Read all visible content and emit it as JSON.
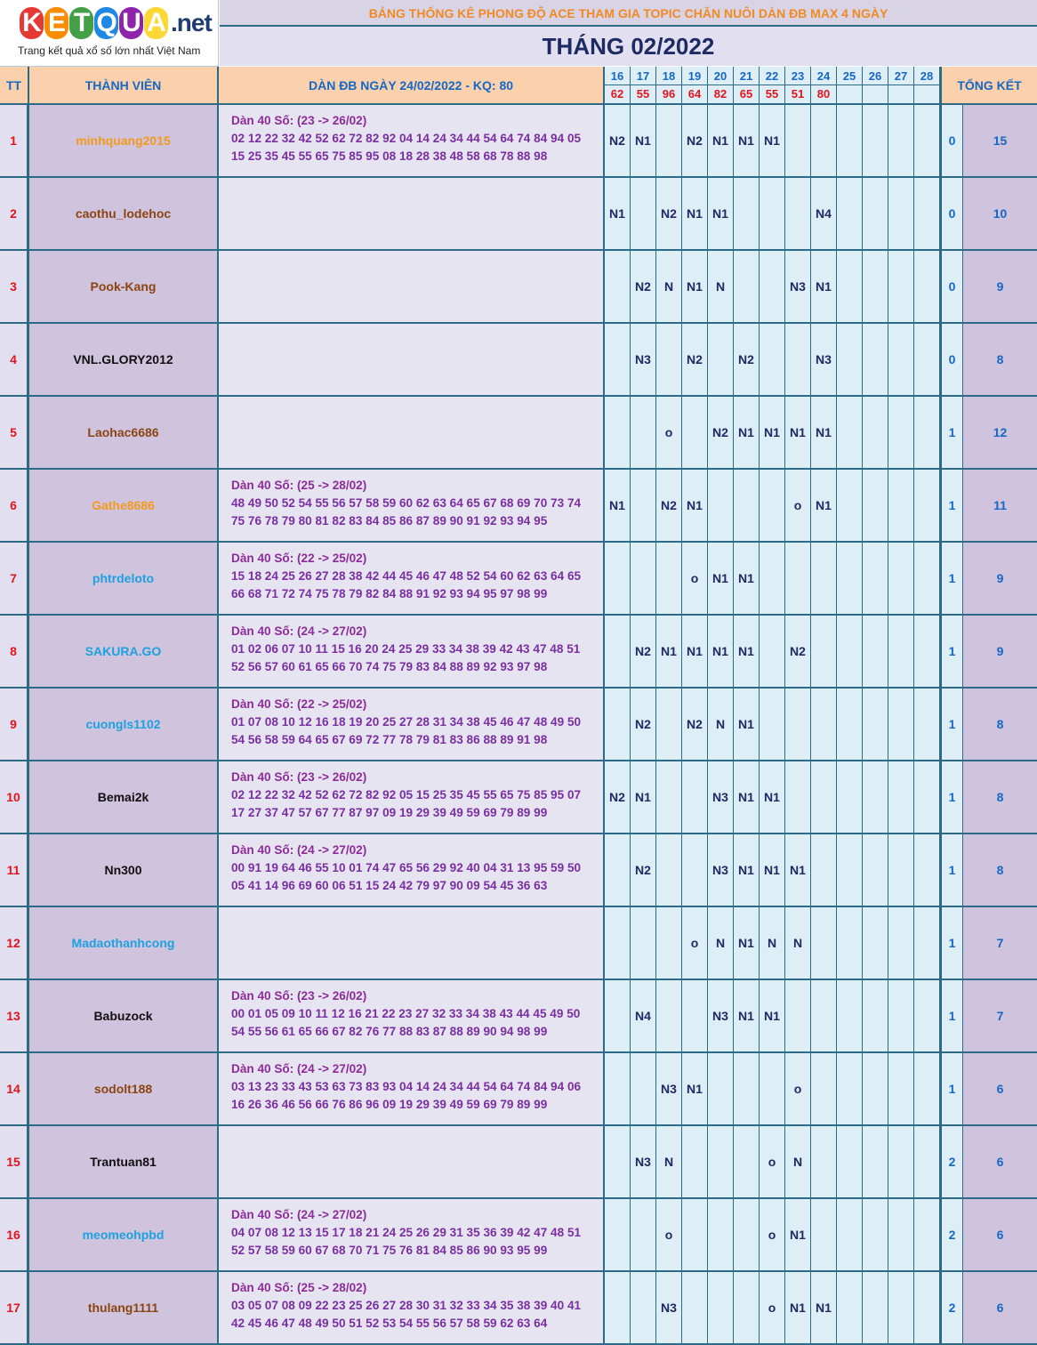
{
  "logo": {
    "letters": [
      "K",
      "E",
      "T",
      "Q",
      "U",
      "A"
    ],
    "letter_colors": [
      "#e53935",
      "#fb8c00",
      "#43a047",
      "#1e88e5",
      "#8e24aa",
      "#fdd835"
    ],
    "tail": ".net",
    "tagline": "Trang kết quả xổ số lớn nhất Việt Nam"
  },
  "banner": "BẢNG THỐNG KÊ PHONG ĐỘ ACE THAM GIA TOPIC CHĂN NUÔI DÀN ĐB MAX 4 NGÀY",
  "month_title": "THÁNG 02/2022",
  "headers": {
    "tt": "TT",
    "member": "THÀNH VIÊN",
    "dan": "DÀN ĐB NGÀY 24/02/2022 - KQ: 80",
    "total": "TỔNG KẾT"
  },
  "days": [
    "16",
    "17",
    "18",
    "19",
    "20",
    "21",
    "22",
    "23",
    "24",
    "25",
    "26",
    "27",
    "28"
  ],
  "results": [
    "62",
    "55",
    "96",
    "64",
    "82",
    "65",
    "55",
    "51",
    "80",
    "",
    "",
    "",
    ""
  ],
  "colors": {
    "orange_name": "#f39a1d",
    "brown_name": "#8b4513",
    "black_name": "#111111",
    "blue_name": "#1da1e0",
    "result_red": "#e0151d",
    "header_blue": "#1568c5",
    "grid_line": "#2d6a86"
  },
  "rows": [
    {
      "tt": "1",
      "name": "minhquang2015",
      "name_color": "orange",
      "dan_title": "Dàn 40 Số: (23 -> 26/02)",
      "dan_line1": "02 12 22 32 42 52 62 72 82 92 04 14 24 34 44 54 64 74 84 94 05",
      "dan_line2": "15 25 35 45 55 65 75 85 95 08 18 28 38 48 58 68 78 88 98",
      "marks": [
        "N2",
        "N1",
        "",
        "N2",
        "N1",
        "N1",
        "N1",
        "",
        "",
        "",
        "",
        "",
        ""
      ],
      "sum_a": "0",
      "sum_b": "15"
    },
    {
      "tt": "2",
      "name": "caothu_lodehoc",
      "name_color": "brown",
      "dan_title": "",
      "dan_line1": "",
      "dan_line2": "",
      "marks": [
        "N1",
        "",
        "N2",
        "N1",
        "N1",
        "",
        "",
        "",
        "N4",
        "",
        "",
        "",
        ""
      ],
      "sum_a": "0",
      "sum_b": "10"
    },
    {
      "tt": "3",
      "name": "Pook-Kang",
      "name_color": "brown",
      "dan_title": "",
      "dan_line1": "",
      "dan_line2": "",
      "marks": [
        "",
        "N2",
        "N",
        "N1",
        "N",
        "",
        "",
        "N3",
        "N1",
        "",
        "",
        "",
        ""
      ],
      "sum_a": "0",
      "sum_b": "9"
    },
    {
      "tt": "4",
      "name": "VNL.GLORY2012",
      "name_color": "black",
      "dan_title": "",
      "dan_line1": "",
      "dan_line2": "",
      "marks": [
        "",
        "N3",
        "",
        "N2",
        "",
        "N2",
        "",
        "",
        "N3",
        "",
        "",
        "",
        ""
      ],
      "sum_a": "0",
      "sum_b": "8"
    },
    {
      "tt": "5",
      "name": "Laohac6686",
      "name_color": "brown",
      "dan_title": "",
      "dan_line1": "",
      "dan_line2": "",
      "marks": [
        "",
        "",
        "o",
        "",
        "N2",
        "N1",
        "N1",
        "N1",
        "N1",
        "",
        "",
        "",
        ""
      ],
      "sum_a": "1",
      "sum_b": "12"
    },
    {
      "tt": "6",
      "name": "Gathe8686",
      "name_color": "orange",
      "dan_title": "Dàn 40 Số: (25 -> 28/02)",
      "dan_line1": "48 49 50 52 54 55 56 57 58 59 60 62 63 64 65 67 68 69 70 73 74",
      "dan_line2": "75 76 78 79 80 81 82 83 84 85 86 87 89 90 91 92 93 94 95",
      "marks": [
        "N1",
        "",
        "N2",
        "N1",
        "",
        "",
        "",
        "o",
        "N1",
        "",
        "",
        "",
        ""
      ],
      "sum_a": "1",
      "sum_b": "11"
    },
    {
      "tt": "7",
      "name": "phtrdeloto",
      "name_color": "blue",
      "dan_title": "Dàn 40 Số: (22 -> 25/02)",
      "dan_line1": "15 18 24 25 26 27 28 38 42 44 45 46 47 48 52 54 60 62 63 64 65",
      "dan_line2": "66 68 71 72 74 75 78 79 82 84 88 91 92 93 94 95 97 98 99",
      "marks": [
        "",
        "",
        "",
        "o",
        "N1",
        "N1",
        "",
        "",
        "",
        "",
        "",
        "",
        ""
      ],
      "sum_a": "1",
      "sum_b": "9"
    },
    {
      "tt": "8",
      "name": "SAKURA.GO",
      "name_color": "blue",
      "dan_title": "Dàn 40 Số: (24 -> 27/02)",
      "dan_line1": "01 02 06 07 10 11 15 16 20 24 25 29 33 34 38 39 42 43 47 48 51",
      "dan_line2": "52 56 57 60 61 65 66 70 74 75 79 83 84 88 89 92 93 97 98",
      "marks": [
        "",
        "N2",
        "N1",
        "N1",
        "N1",
        "N1",
        "",
        "N2",
        "",
        "",
        "",
        "",
        ""
      ],
      "sum_a": "1",
      "sum_b": "9"
    },
    {
      "tt": "9",
      "name": "cuongls1102",
      "name_color": "blue",
      "dan_title": "Dàn 40 Số: (22 -> 25/02)",
      "dan_line1": "01 07 08 10 12 16 18 19 20 25 27 28 31 34 38 45 46 47 48 49 50",
      "dan_line2": "54 56 58 59 64 65 67 69 72 77 78 79 81 83 86 88 89 91 98",
      "marks": [
        "",
        "N2",
        "",
        "N2",
        "N",
        "N1",
        "",
        "",
        "",
        "",
        "",
        "",
        ""
      ],
      "sum_a": "1",
      "sum_b": "8"
    },
    {
      "tt": "10",
      "name": "Bemai2k",
      "name_color": "black",
      "dan_title": "Dàn 40 Số: (23 -> 26/02)",
      "dan_line1": "02 12 22 32 42 52 62 72 82 92 05 15 25 35 45 55 65 75 85 95 07",
      "dan_line2": "17 27 37 47 57 67 77 87 97 09 19 29 39 49 59 69 79 89 99",
      "marks": [
        "N2",
        "N1",
        "",
        "",
        "N3",
        "N1",
        "N1",
        "",
        "",
        "",
        "",
        "",
        ""
      ],
      "sum_a": "1",
      "sum_b": "8"
    },
    {
      "tt": "11",
      "name": "Nn300",
      "name_color": "black",
      "dan_title": "Dàn 40 Số: (24 -> 27/02)",
      "dan_line1": "00 91 19 64 46 55 10 01 74 47 65 56 29 92 40 04 31 13 95 59 50",
      "dan_line2": "05 41 14 96 69 60 06 51 15 24 42 79 97 90 09 54 45 36 63",
      "marks": [
        "",
        "N2",
        "",
        "",
        "N3",
        "N1",
        "N1",
        "N1",
        "",
        "",
        "",
        "",
        ""
      ],
      "sum_a": "1",
      "sum_b": "8"
    },
    {
      "tt": "12",
      "name": "Madaothanhcong",
      "name_color": "blue",
      "dan_title": "",
      "dan_line1": "",
      "dan_line2": "",
      "marks": [
        "",
        "",
        "",
        "o",
        "N",
        "N1",
        "N",
        "N",
        "",
        "",
        "",
        "",
        ""
      ],
      "sum_a": "1",
      "sum_b": "7"
    },
    {
      "tt": "13",
      "name": "Babuzock",
      "name_color": "black",
      "dan_title": "Dàn 40 Số: (23 -> 26/02)",
      "dan_line1": "00 01 05 09 10 11 12 16 21 22 23 27 32 33 34 38 43 44 45 49 50",
      "dan_line2": "54 55 56 61 65 66 67 82 76 77 88 83 87 88 89 90 94 98 99",
      "marks": [
        "",
        "N4",
        "",
        "",
        "N3",
        "N1",
        "N1",
        "",
        "",
        "",
        "",
        "",
        ""
      ],
      "sum_a": "1",
      "sum_b": "7"
    },
    {
      "tt": "14",
      "name": "sodolt188",
      "name_color": "brown",
      "dan_title": "Dàn 40 Số: (24 -> 27/02)",
      "dan_line1": "03 13 23 33 43 53 63 73 83 93 04 14 24 34 44 54 64 74 84 94 06",
      "dan_line2": "16 26 36 46 56 66 76 86 96 09 19 29 39 49 59 69 79 89 99",
      "marks": [
        "",
        "",
        "N3",
        "N1",
        "",
        "",
        "",
        "o",
        "",
        "",
        "",
        "",
        ""
      ],
      "sum_a": "1",
      "sum_b": "6"
    },
    {
      "tt": "15",
      "name": "Trantuan81",
      "name_color": "black",
      "dan_title": "",
      "dan_line1": "",
      "dan_line2": "",
      "marks": [
        "",
        "N3",
        "N",
        "",
        "",
        "",
        "o",
        "N",
        "",
        "",
        "",
        "",
        ""
      ],
      "sum_a": "2",
      "sum_b": "6"
    },
    {
      "tt": "16",
      "name": "meomeohpbd",
      "name_color": "blue",
      "dan_title": "Dàn 40 Số: (24 -> 27/02)",
      "dan_line1": "04 07 08 12 13 15 17 18 21 24 25 26 29 31 35 36 39 42 47 48 51",
      "dan_line2": "52 57 58 59 60 67 68 70 71 75 76 81 84 85 86 90 93 95 99",
      "marks": [
        "",
        "",
        "o",
        "",
        "",
        "",
        "o",
        "N1",
        "",
        "",
        "",
        "",
        ""
      ],
      "sum_a": "2",
      "sum_b": "6"
    },
    {
      "tt": "17",
      "name": "thulang1111",
      "name_color": "brown",
      "dan_title": "Dàn 40 Số: (25 -> 28/02)",
      "dan_line1": "03 05 07 08 09 22 23 25 26 27 28 30 31 32 33 34 35 38 39 40 41",
      "dan_line2": "42 45 46 47 48 49 50 51 52 53 54 55 56 57 58 59 62 63 64",
      "marks": [
        "",
        "",
        "N3",
        "",
        "",
        "",
        "o",
        "N1",
        "N1",
        "",
        "",
        "",
        ""
      ],
      "sum_a": "2",
      "sum_b": "6"
    }
  ]
}
